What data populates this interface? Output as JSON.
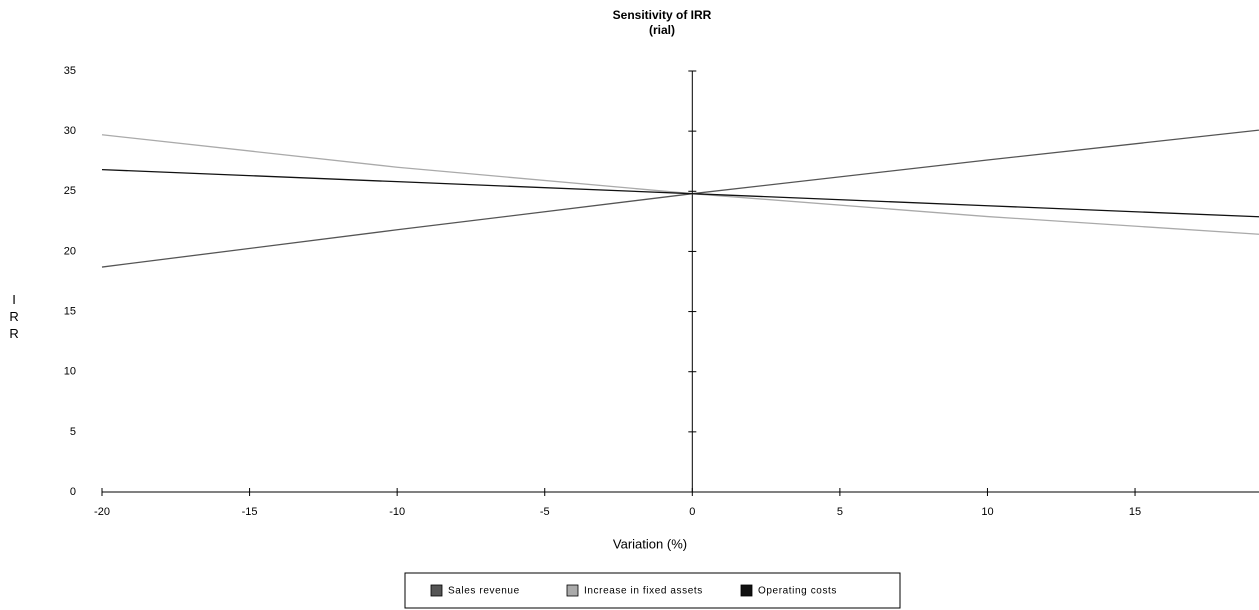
{
  "chart_data": {
    "type": "line",
    "title": "Sensitivity of IRR",
    "subtitle": "(rial)",
    "x_label": "Variation (%)",
    "y_label": "IRR",
    "x": [
      -20,
      -10,
      0,
      10,
      20
    ],
    "series": [
      {
        "name": "Sales revenue",
        "color": "#555555",
        "values": [
          18.7,
          21.8,
          24.8,
          27.6,
          30.3
        ]
      },
      {
        "name": "Increase in fixed assets",
        "color": "#aaaaaa",
        "values": [
          29.7,
          27.0,
          24.8,
          22.9,
          21.3
        ]
      },
      {
        "name": "Operating costs",
        "color": "#111111",
        "values": [
          26.8,
          25.8,
          24.8,
          23.8,
          22.8
        ]
      }
    ],
    "xlim": [
      -20,
      19.2
    ],
    "xticks": [
      -20,
      -15,
      -10,
      -5,
      0,
      5,
      10,
      15
    ],
    "ylim": [
      0,
      35
    ],
    "yticks": [
      0,
      5,
      10,
      15,
      20,
      25,
      30,
      35
    ],
    "legend": "bottom"
  }
}
